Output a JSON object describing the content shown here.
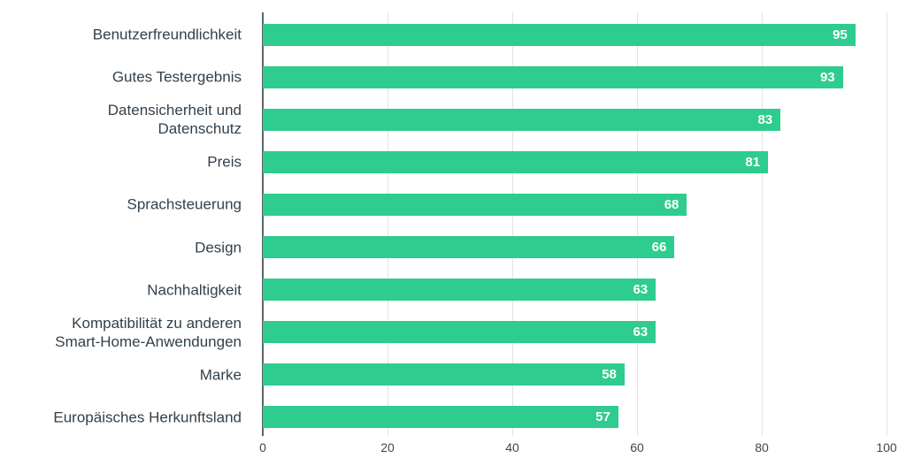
{
  "chart_data": {
    "type": "bar",
    "orientation": "horizontal",
    "title": "",
    "xlabel": "",
    "ylabel": "",
    "xlim": [
      0,
      100
    ],
    "xticks": [
      0,
      20,
      40,
      60,
      80,
      100
    ],
    "grid": "vertical-light",
    "legend": "none",
    "bar_color": "#2ecc8e",
    "value_label_color": "#ffffff",
    "category_label_color": "#33404b",
    "categories": [
      "Benutzerfreundlichkeit",
      "Gutes Testergebnis",
      "Datensicherheit und Datenschutz",
      "Preis",
      "Sprachsteuerung",
      "Design",
      "Nachhaltigkeit",
      "Kompatibilität zu anderen Smart-Home-Anwendungen",
      "Marke",
      "Europäisches Herkunftsland"
    ],
    "category_label_lines": [
      [
        "Benutzerfreundlichkeit"
      ],
      [
        "Gutes Testergebnis"
      ],
      [
        "Datensicherheit und",
        "Datenschutz"
      ],
      [
        "Preis"
      ],
      [
        "Sprachsteuerung"
      ],
      [
        "Design"
      ],
      [
        "Nachhaltigkeit"
      ],
      [
        "Kompatibilität zu anderen",
        "Smart-Home-Anwendungen"
      ],
      [
        "Marke"
      ],
      [
        "Europäisches Herkunftsland"
      ]
    ],
    "values": [
      95,
      93,
      83,
      81,
      68,
      66,
      63,
      63,
      58,
      57
    ]
  }
}
